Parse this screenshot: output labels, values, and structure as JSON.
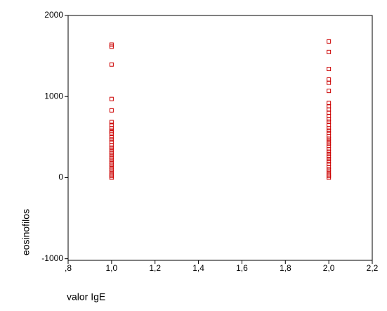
{
  "chart_data": {
    "type": "scatter",
    "x_label": "valor IgE",
    "y_label": "eosinofilos",
    "x": [
      1,
      1,
      1,
      1,
      1,
      1,
      1,
      1,
      1,
      1,
      1,
      1,
      1,
      1,
      1,
      1,
      1,
      1,
      1,
      1,
      1,
      1,
      1,
      1,
      1,
      1,
      1,
      1,
      1,
      2,
      2,
      2,
      2,
      2,
      2,
      2,
      2,
      2,
      2,
      2,
      2,
      2,
      2,
      2,
      2,
      2,
      2,
      2,
      2,
      2,
      2,
      2,
      2,
      2,
      2,
      2,
      2,
      2,
      2,
      2,
      2,
      2,
      2,
      2
    ],
    "values": [
      1640,
      1615,
      1395,
      970,
      830,
      685,
      650,
      610,
      580,
      560,
      540,
      500,
      470,
      440,
      400,
      370,
      340,
      310,
      280,
      250,
      220,
      190,
      160,
      130,
      100,
      70,
      40,
      20,
      0,
      1680,
      1550,
      1340,
      1210,
      1170,
      1070,
      920,
      880,
      840,
      800,
      760,
      720,
      690,
      650,
      610,
      580,
      550,
      510,
      480,
      450,
      420,
      390,
      350,
      320,
      290,
      260,
      230,
      200,
      170,
      130,
      100,
      70,
      40,
      20,
      0
    ],
    "color": "#cc0000",
    "xlim": [
      0.8,
      2.2
    ],
    "xticks": [
      {
        "value": 0.8,
        "label": ",8"
      },
      {
        "value": 1.0,
        "label": "1,0"
      },
      {
        "value": 1.2,
        "label": "1,2"
      },
      {
        "value": 1.4,
        "label": "1,4"
      },
      {
        "value": 1.6,
        "label": "1,6"
      },
      {
        "value": 1.8,
        "label": "1,8"
      },
      {
        "value": 2.0,
        "label": "2,0"
      },
      {
        "value": 2.2,
        "label": "2,2"
      }
    ],
    "ylim": [
      -1020,
      2000
    ],
    "yticks": [
      2000,
      1000,
      0,
      -1000
    ]
  }
}
